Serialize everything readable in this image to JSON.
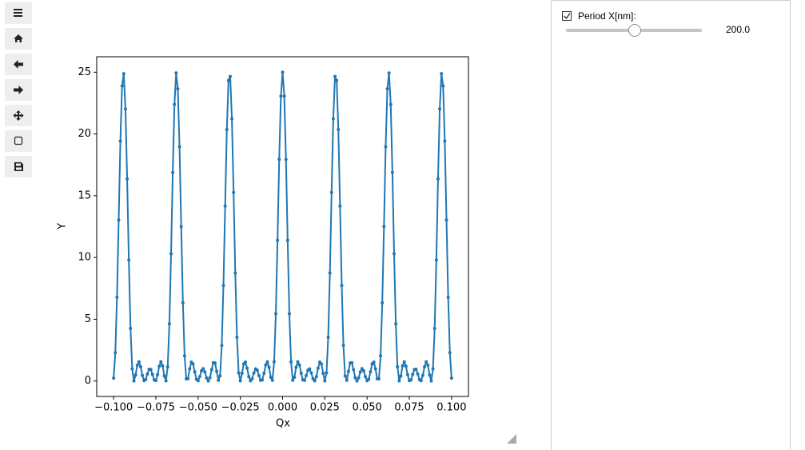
{
  "chart_data": {
    "type": "line",
    "x_label": "Qx",
    "y_label": "Y",
    "color": "#1f77b4",
    "x": [
      -0.1,
      -0.099,
      -0.098,
      -0.097,
      -0.096,
      -0.095,
      -0.094,
      -0.093,
      -0.092,
      -0.091,
      -0.09,
      -0.089,
      -0.088,
      -0.087,
      -0.086,
      -0.085,
      -0.084,
      -0.083,
      -0.082,
      -0.081,
      -0.08,
      -0.079,
      -0.078,
      -0.077,
      -0.076,
      -0.075,
      -0.074,
      -0.073,
      -0.072,
      -0.071,
      -0.07,
      -0.069,
      -0.068,
      -0.067,
      -0.066,
      -0.065,
      -0.064,
      -0.063,
      -0.062,
      -0.061,
      -0.06,
      -0.059,
      -0.058,
      -0.057,
      -0.056,
      -0.055,
      -0.054,
      -0.053,
      -0.052,
      -0.051,
      -0.05,
      -0.049,
      -0.048,
      -0.047,
      -0.046,
      -0.045,
      -0.044,
      -0.043,
      -0.042,
      -0.041,
      -0.04,
      -0.039,
      -0.038,
      -0.037,
      -0.036,
      -0.035,
      -0.034,
      -0.033,
      -0.032,
      -0.031,
      -0.03,
      -0.029,
      -0.028,
      -0.027,
      -0.026,
      -0.025,
      -0.024,
      -0.023,
      -0.022,
      -0.021,
      -0.02,
      -0.019,
      -0.018,
      -0.017,
      -0.016,
      -0.015,
      -0.014,
      -0.013,
      -0.012,
      -0.011,
      -0.01,
      -0.009,
      -0.008,
      -0.007,
      -0.006,
      -0.005,
      -0.004,
      -0.003,
      -0.002,
      -0.001,
      0,
      0.001,
      0.002,
      0.003,
      0.004,
      0.005,
      0.006,
      0.007,
      0.008,
      0.009,
      0.01,
      0.011,
      0.012,
      0.013,
      0.014,
      0.015,
      0.016,
      0.017,
      0.018,
      0.019,
      0.02,
      0.021,
      0.022,
      0.023,
      0.024,
      0.025,
      0.026,
      0.027,
      0.028,
      0.029,
      0.03,
      0.031,
      0.032,
      0.033,
      0.034,
      0.035,
      0.036,
      0.037,
      0.038,
      0.039,
      0.04,
      0.041,
      0.042,
      0.043,
      0.044,
      0.045,
      0.046,
      0.047,
      0.048,
      0.049,
      0.05,
      0.051,
      0.052,
      0.053,
      0.054,
      0.055,
      0.056,
      0.057,
      0.058,
      0.059,
      0.06,
      0.061,
      0.062,
      0.063,
      0.064,
      0.065,
      0.066,
      0.067,
      0.068,
      0.069,
      0.07,
      0.071,
      0.072,
      0.073,
      0.074,
      0.075,
      0.076,
      0.077,
      0.078,
      0.079,
      0.08,
      0.081,
      0.082,
      0.083,
      0.084,
      0.085,
      0.086,
      0.087,
      0.088,
      0.089,
      0.09,
      0.091,
      0.092,
      0.093,
      0.094,
      0.095,
      0.096,
      0.097,
      0.098,
      0.099,
      0.1
    ],
    "values": [
      0.23,
      2.29,
      6.77,
      13.04,
      19.42,
      23.89,
      24.88,
      22.03,
      16.37,
      9.79,
      4.26,
      0.98,
      0,
      0.49,
      1.28,
      1.56,
      1.15,
      0.46,
      0.03,
      0.12,
      0.57,
      0.95,
      0.93,
      0.53,
      0.09,
      0.04,
      0.51,
      1.2,
      1.56,
      1.23,
      0.42,
      0.01,
      1.15,
      4.63,
      10.3,
      16.88,
      22.39,
      24.94,
      23.65,
      18.96,
      12.5,
      6.33,
      2.04,
      0.17,
      0.18,
      0.98,
      1.53,
      1.39,
      0.75,
      0.15,
      0.02,
      0.36,
      0.83,
      1,
      0.73,
      0.25,
      0,
      0.26,
      0.92,
      1.48,
      1.46,
      0.78,
      0.06,
      0.42,
      2.88,
      7.74,
      14.16,
      20.36,
      24.33,
      24.66,
      21.23,
      15.27,
      8.74,
      3.54,
      0.66,
      0.01,
      0.63,
      1.38,
      1.53,
      1.04,
      0.36,
      0.01,
      0.18,
      0.65,
      0.98,
      0.88,
      0.44,
      0.05,
      0.09,
      0.63,
      1.3,
      1.56,
      1.11,
      0.3,
      0.06,
      1.56,
      5.45,
      11.39,
      17.94,
      23.06,
      25,
      23.06,
      17.94,
      11.39,
      5.45,
      1.56,
      0.06,
      0.3,
      1.11,
      1.56,
      1.3,
      0.63,
      0.09,
      0.05,
      0.44,
      0.88,
      0.98,
      0.65,
      0.18,
      0.01,
      0.36,
      1.04,
      1.53,
      1.38,
      0.63,
      0.01,
      0.66,
      3.54,
      8.74,
      15.27,
      21.23,
      24.66,
      24.33,
      20.36,
      14.16,
      7.74,
      2.88,
      0.42,
      0.06,
      0.78,
      1.46,
      1.48,
      0.92,
      0.26,
      0,
      0.25,
      0.73,
      1,
      0.83,
      0.36,
      0.02,
      0.15,
      0.75,
      1.39,
      1.53,
      0.98,
      0.18,
      0.17,
      2.04,
      6.33,
      12.5,
      18.96,
      23.65,
      24.94,
      22.39,
      16.88,
      10.3,
      4.63,
      1.15,
      0.01,
      0.42,
      1.23,
      1.56,
      1.2,
      0.51,
      0.04,
      0.09,
      0.53,
      0.93,
      0.95,
      0.57,
      0.12,
      0.03,
      0.46,
      1.15,
      1.56,
      1.28,
      0.49,
      0,
      0.98,
      4.26,
      9.79,
      16.37,
      22.03,
      24.88,
      23.89,
      19.42,
      13.04,
      6.77,
      2.29,
      0.23
    ],
    "xlim": [
      -0.11,
      0.11
    ],
    "ylim": [
      -1.25,
      26.25
    ],
    "xticks": [
      {
        "value": -0.1,
        "label": "−0.100"
      },
      {
        "value": -0.075,
        "label": "−0.075"
      },
      {
        "value": -0.05,
        "label": "−0.050"
      },
      {
        "value": -0.025,
        "label": "−0.025"
      },
      {
        "value": 0,
        "label": "0.000"
      },
      {
        "value": 0.025,
        "label": "0.025"
      },
      {
        "value": 0.05,
        "label": "0.050"
      },
      {
        "value": 0.075,
        "label": "0.075"
      },
      {
        "value": 0.1,
        "label": "0.100"
      }
    ],
    "yticks": [
      0,
      5,
      10,
      15,
      20,
      25
    ]
  },
  "widget": {
    "checkbox_label": "Period X[nm]:",
    "checked": true,
    "slider_value": "200.0"
  }
}
